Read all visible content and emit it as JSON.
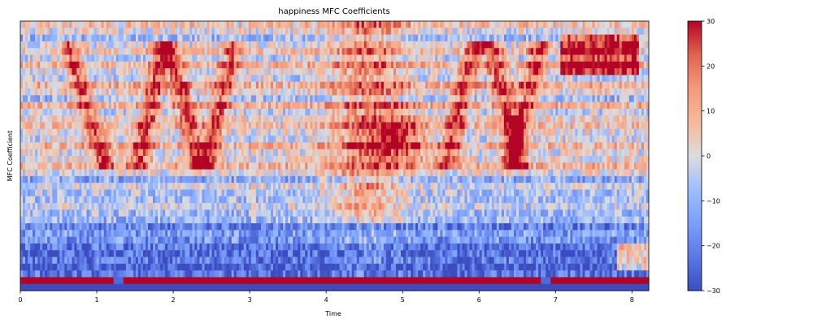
{
  "chart_data": {
    "type": "heatmap",
    "title": "happiness MFC Coefficients",
    "xlabel": "Time",
    "ylabel": "MFC Coefficient",
    "xlim": [
      0,
      8.22
    ],
    "x_ticks": [
      "0",
      "1",
      "2",
      "3",
      "4",
      "5",
      "6",
      "7",
      "8"
    ],
    "n_coefficients": 40,
    "colormap": "coolwarm",
    "colorbar": {
      "vmin": -30,
      "vmax": 30,
      "ticks": [
        "30",
        "20",
        "10",
        "0",
        "−10",
        "−20",
        "−30"
      ]
    },
    "grid": false
  }
}
